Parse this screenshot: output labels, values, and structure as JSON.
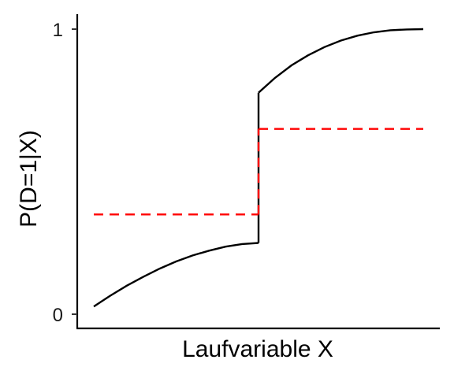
{
  "chart_data": {
    "type": "line",
    "xlabel": "Laufvariable X",
    "ylabel": "P(D=1|X)",
    "xlim": [
      0,
      1
    ],
    "ylim": [
      0,
      1
    ],
    "yticks": [
      {
        "value": 0,
        "label": "0"
      },
      {
        "value": 1,
        "label": "1"
      }
    ],
    "xticks": [],
    "grid": false,
    "legend": "none",
    "cutoff": 0.5,
    "series": [
      {
        "style": "solid",
        "color": "#000000",
        "segments": [
          {
            "x": [
              0.0,
              0.05,
              0.1,
              0.15,
              0.2,
              0.25,
              0.3,
              0.35,
              0.4,
              0.45,
              0.5
            ],
            "y": [
              0.027,
              0.065,
              0.1,
              0.131,
              0.16,
              0.185,
              0.206,
              0.223,
              0.237,
              0.246,
              0.25
            ]
          },
          {
            "x": [
              0.5,
              0.55,
              0.6,
              0.65,
              0.7,
              0.75,
              0.8,
              0.85,
              0.9,
              0.95,
              1.0
            ],
            "y": [
              0.777,
              0.829,
              0.873,
              0.908,
              0.937,
              0.96,
              0.977,
              0.989,
              0.996,
              0.999,
              1.0
            ]
          }
        ],
        "jump": {
          "x": 0.5,
          "from": 0.25,
          "to": 0.777
        }
      },
      {
        "style": "dashed",
        "color": "#ff0000",
        "segments": [
          {
            "x": [
              0.0,
              0.5
            ],
            "y": [
              0.35,
              0.35
            ]
          },
          {
            "x": [
              0.5,
              1.0
            ],
            "y": [
              0.65,
              0.65
            ]
          }
        ],
        "jump": {
          "x": 0.5,
          "from": 0.35,
          "to": 0.65
        }
      }
    ]
  }
}
